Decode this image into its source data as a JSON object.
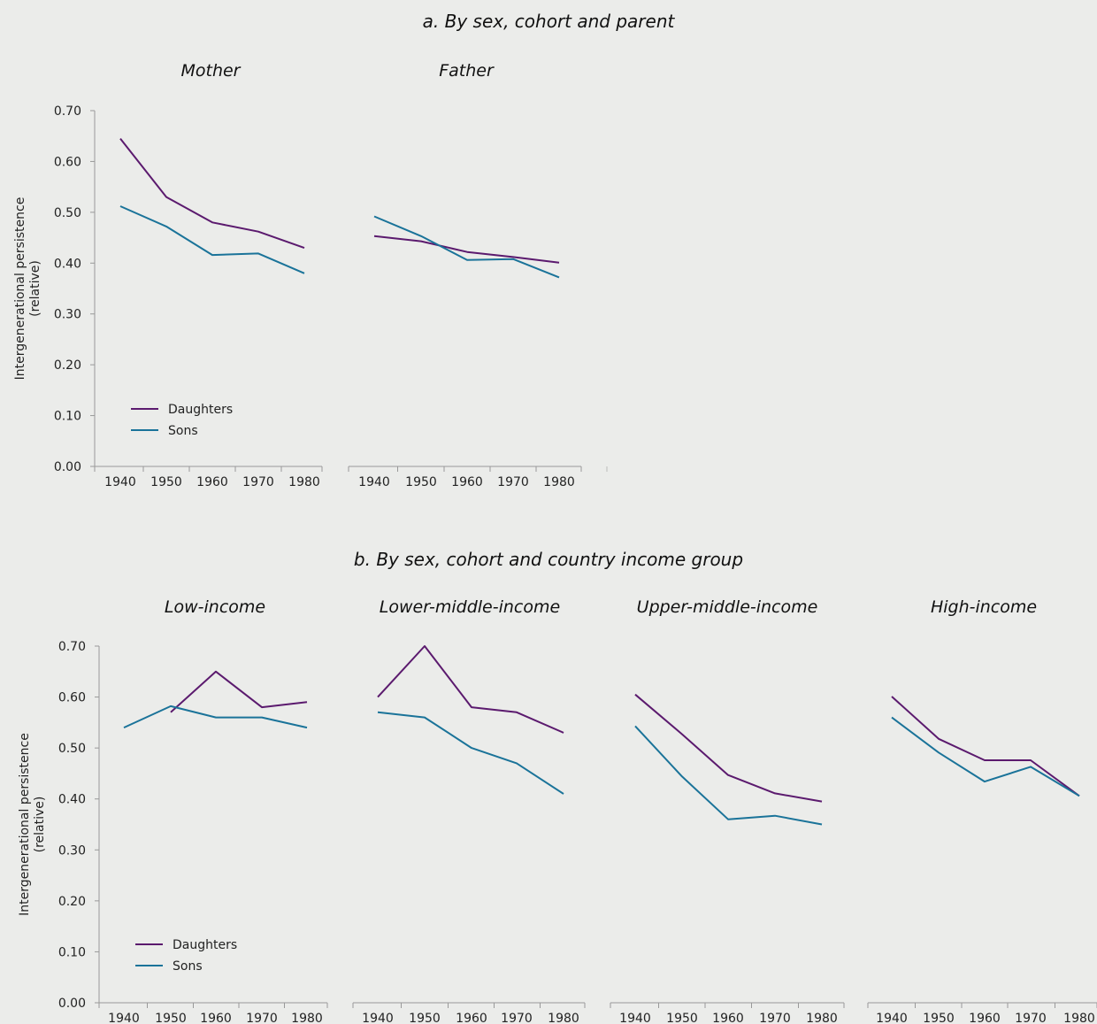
{
  "chart_data": [
    {
      "type": "line",
      "title": "a. By sex, cohort and parent",
      "ylabel": "Intergenerational persistence (relative)",
      "ylim": [
        0,
        0.7
      ],
      "yticks": [
        "0.00",
        "0.10",
        "0.20",
        "0.30",
        "0.40",
        "0.50",
        "0.60",
        "0.70"
      ],
      "legend_placement": "bottom-left",
      "panels": [
        {
          "title": "Mother",
          "categories": [
            "1940",
            "1950",
            "1960",
            "1970",
            "1980"
          ],
          "series": [
            {
              "name": "Daughters",
              "color": "#5b1a6e",
              "values": [
                0.645,
                0.53,
                0.48,
                0.462,
                0.43
              ]
            },
            {
              "name": "Sons",
              "color": "#1a7399",
              "values": [
                0.512,
                0.472,
                0.416,
                0.419,
                0.38
              ]
            }
          ]
        },
        {
          "title": "Father",
          "categories": [
            "1940",
            "1950",
            "1960",
            "1970",
            "1980"
          ],
          "series": [
            {
              "name": "Daughters",
              "color": "#5b1a6e",
              "values": [
                0.453,
                0.443,
                0.422,
                0.412,
                0.401
              ]
            },
            {
              "name": "Sons",
              "color": "#1a7399",
              "values": [
                0.492,
                0.453,
                0.406,
                0.408,
                0.372
              ]
            }
          ]
        }
      ]
    },
    {
      "type": "line",
      "title": "b. By sex, cohort and country income group",
      "ylabel": "Intergenerational persistence (relative)",
      "ylim": [
        0,
        0.7
      ],
      "yticks": [
        "0.00",
        "0.10",
        "0.20",
        "0.30",
        "0.40",
        "0.50",
        "0.60",
        "0.70"
      ],
      "legend_placement": "bottom-left",
      "panels": [
        {
          "title": "Low-income",
          "categories": [
            "1940",
            "1950",
            "1960",
            "1970",
            "1980"
          ],
          "series": [
            {
              "name": "Daughters",
              "color": "#5b1a6e",
              "values": [
                null,
                0.57,
                0.65,
                0.58,
                0.59
              ]
            },
            {
              "name": "Sons",
              "color": "#1a7399",
              "values": [
                0.54,
                0.582,
                0.56,
                0.56,
                0.54
              ]
            }
          ]
        },
        {
          "title": "Lower-middle-income",
          "categories": [
            "1940",
            "1950",
            "1960",
            "1970",
            "1980"
          ],
          "series": [
            {
              "name": "Daughters",
              "color": "#5b1a6e",
              "values": [
                0.6,
                0.7,
                0.58,
                0.57,
                0.53
              ]
            },
            {
              "name": "Sons",
              "color": "#1a7399",
              "values": [
                0.57,
                0.56,
                0.5,
                0.47,
                0.41
              ]
            }
          ]
        },
        {
          "title": "Upper-middle-income",
          "categories": [
            "1940",
            "1950",
            "1960",
            "1970",
            "1980"
          ],
          "series": [
            {
              "name": "Daughters",
              "color": "#5b1a6e",
              "values": [
                0.605,
                0.527,
                0.447,
                0.411,
                0.395
              ]
            },
            {
              "name": "Sons",
              "color": "#1a7399",
              "values": [
                0.543,
                0.444,
                0.36,
                0.367,
                0.35
              ]
            }
          ]
        },
        {
          "title": "High-income",
          "categories": [
            "1940",
            "1950",
            "1960",
            "1970",
            "1980"
          ],
          "series": [
            {
              "name": "Daughters",
              "color": "#5b1a6e",
              "values": [
                0.601,
                0.518,
                0.476,
                0.476,
                0.406
              ]
            },
            {
              "name": "Sons",
              "color": "#1a7399",
              "values": [
                0.56,
                0.491,
                0.434,
                0.463,
                0.406
              ]
            }
          ]
        }
      ]
    }
  ]
}
